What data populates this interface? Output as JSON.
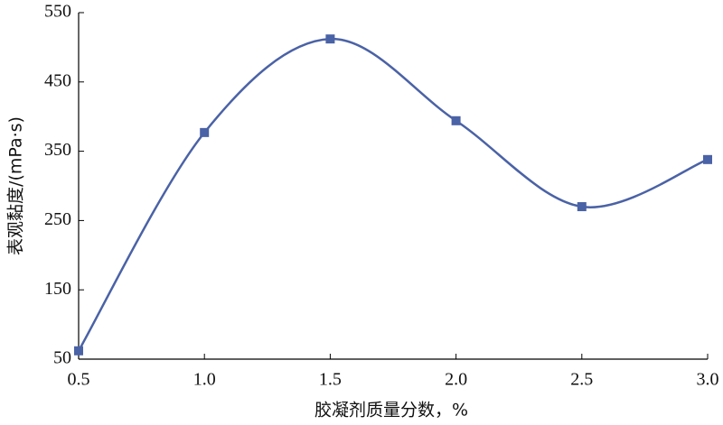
{
  "chart_data": {
    "type": "line",
    "x_label": "胶凝剂质量分数，%",
    "y_label": "表观黏度/(mPa·s)",
    "x": [
      0.5,
      1.0,
      1.5,
      2.0,
      2.5,
      3.0
    ],
    "series": [
      {
        "color": "#4a62a6",
        "values": [
          62,
          377,
          512,
          394,
          270,
          338
        ]
      }
    ],
    "xlim": [
      0.5,
      3.0
    ],
    "xticks": [
      0.5,
      {
        "value": 1.0,
        "label": "1.0"
      },
      1.5,
      {
        "value": 2.0,
        "label": "2.0"
      },
      2.5,
      {
        "value": 3.0,
        "label": "3.0"
      }
    ],
    "ylim": [
      50,
      550
    ],
    "yticks": [
      50,
      150,
      250,
      350,
      450,
      550
    ],
    "smooth": true,
    "marker": "square"
  }
}
